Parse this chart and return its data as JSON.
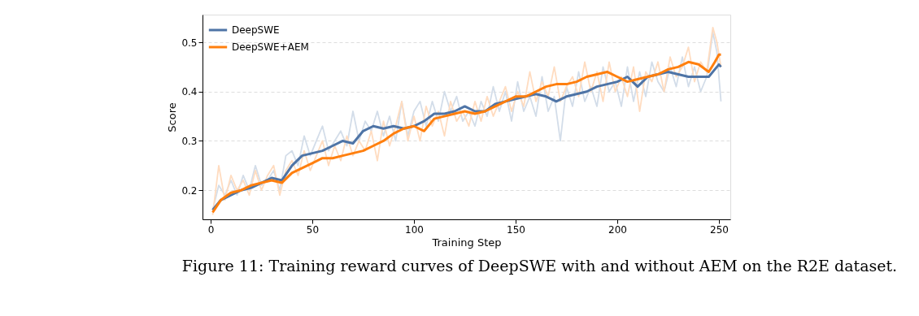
{
  "chart_data": {
    "type": "line",
    "xlabel": "Training Step",
    "ylabel": "Score",
    "xlim": [
      -4,
      255.6
    ],
    "ylim": [
      0.141,
      0.556
    ],
    "xticks": [
      0,
      50,
      100,
      150,
      200,
      250
    ],
    "yticks": [
      0.2,
      0.3,
      0.4,
      0.5
    ],
    "grid": "y",
    "legend": "top left",
    "line_style": "solid",
    "marker": "none",
    "annotations": [
      "Figure 11: Training reward curves of DeepSWE with and without AEM on the R2E dataset."
    ],
    "series": [
      {
        "color": "#d3dde9",
        "x": [
          1,
          4,
          7,
          10,
          13,
          16,
          19,
          22,
          25,
          28,
          31,
          34,
          37,
          40,
          43,
          46,
          49,
          52,
          55,
          58,
          61,
          64,
          67,
          70,
          73,
          76,
          79,
          82,
          85,
          88,
          91,
          94,
          97,
          100,
          103,
          106,
          109,
          112,
          115,
          118,
          121,
          124,
          127,
          130,
          133,
          136,
          139,
          142,
          145,
          148,
          151,
          154,
          157,
          160,
          163,
          166,
          169,
          172,
          175,
          178,
          181,
          184,
          187,
          190,
          193,
          196,
          199,
          202,
          205,
          208,
          211,
          214,
          217,
          220,
          223,
          226,
          229,
          232,
          235,
          238,
          241,
          244,
          247,
          249,
          251
        ],
        "values": [
          0.16,
          0.21,
          0.19,
          0.22,
          0.19,
          0.23,
          0.2,
          0.25,
          0.21,
          0.22,
          0.24,
          0.2,
          0.27,
          0.28,
          0.25,
          0.31,
          0.27,
          0.3,
          0.33,
          0.28,
          0.3,
          0.32,
          0.29,
          0.36,
          0.3,
          0.34,
          0.32,
          0.36,
          0.31,
          0.35,
          0.3,
          0.38,
          0.31,
          0.36,
          0.38,
          0.33,
          0.38,
          0.34,
          0.4,
          0.36,
          0.39,
          0.34,
          0.36,
          0.33,
          0.38,
          0.35,
          0.41,
          0.36,
          0.4,
          0.34,
          0.42,
          0.36,
          0.39,
          0.35,
          0.43,
          0.36,
          0.39,
          0.3,
          0.41,
          0.37,
          0.44,
          0.38,
          0.41,
          0.37,
          0.45,
          0.4,
          0.42,
          0.37,
          0.45,
          0.38,
          0.44,
          0.39,
          0.46,
          0.42,
          0.4,
          0.45,
          0.41,
          0.47,
          0.41,
          0.45,
          0.4,
          0.43,
          0.52,
          0.48,
          0.38
        ]
      },
      {
        "color": "#ffdcc0",
        "x": [
          1,
          4,
          7,
          10,
          13,
          16,
          19,
          22,
          25,
          28,
          31,
          34,
          37,
          40,
          43,
          46,
          49,
          52,
          55,
          58,
          61,
          64,
          67,
          70,
          73,
          76,
          79,
          82,
          85,
          88,
          91,
          94,
          97,
          100,
          103,
          106,
          109,
          112,
          115,
          118,
          121,
          124,
          127,
          130,
          133,
          136,
          139,
          142,
          145,
          148,
          151,
          154,
          157,
          160,
          163,
          166,
          169,
          172,
          175,
          178,
          181,
          184,
          187,
          190,
          193,
          196,
          199,
          202,
          205,
          208,
          211,
          214,
          217,
          220,
          223,
          226,
          229,
          232,
          235,
          238,
          241,
          244,
          247,
          249,
          251
        ],
        "values": [
          0.15,
          0.25,
          0.18,
          0.23,
          0.2,
          0.22,
          0.19,
          0.24,
          0.2,
          0.23,
          0.25,
          0.19,
          0.24,
          0.26,
          0.23,
          0.28,
          0.24,
          0.27,
          0.3,
          0.25,
          0.29,
          0.26,
          0.31,
          0.27,
          0.3,
          0.28,
          0.32,
          0.26,
          0.34,
          0.29,
          0.33,
          0.38,
          0.3,
          0.35,
          0.3,
          0.37,
          0.33,
          0.36,
          0.31,
          0.38,
          0.34,
          0.36,
          0.33,
          0.38,
          0.34,
          0.39,
          0.35,
          0.38,
          0.41,
          0.36,
          0.4,
          0.37,
          0.44,
          0.38,
          0.42,
          0.39,
          0.45,
          0.38,
          0.41,
          0.43,
          0.39,
          0.46,
          0.4,
          0.44,
          0.38,
          0.46,
          0.4,
          0.43,
          0.39,
          0.45,
          0.36,
          0.44,
          0.42,
          0.46,
          0.4,
          0.47,
          0.43,
          0.45,
          0.49,
          0.42,
          0.46,
          0.44,
          0.53,
          0.5,
          0.45
        ]
      },
      {
        "name": "DeepSWE",
        "color": "#4e74a6",
        "x": [
          1,
          5,
          10,
          15,
          20,
          25,
          30,
          35,
          40,
          45,
          50,
          55,
          60,
          65,
          70,
          75,
          80,
          85,
          90,
          95,
          100,
          105,
          110,
          115,
          120,
          125,
          130,
          135,
          140,
          145,
          150,
          155,
          160,
          165,
          170,
          175,
          180,
          185,
          190,
          195,
          200,
          205,
          210,
          215,
          220,
          225,
          230,
          235,
          240,
          245,
          248,
          250,
          251
        ],
        "values": [
          0.16,
          0.18,
          0.19,
          0.2,
          0.205,
          0.215,
          0.225,
          0.22,
          0.25,
          0.27,
          0.275,
          0.28,
          0.29,
          0.3,
          0.295,
          0.32,
          0.33,
          0.325,
          0.33,
          0.325,
          0.33,
          0.34,
          0.355,
          0.355,
          0.36,
          0.37,
          0.36,
          0.36,
          0.375,
          0.38,
          0.385,
          0.39,
          0.395,
          0.39,
          0.38,
          0.39,
          0.395,
          0.4,
          0.41,
          0.415,
          0.42,
          0.43,
          0.41,
          0.43,
          0.435,
          0.44,
          0.435,
          0.43,
          0.43,
          0.43,
          0.445,
          0.455,
          0.45
        ]
      },
      {
        "name": "DeepSWE+AEM",
        "color": "#ff7f0e",
        "x": [
          1,
          5,
          10,
          15,
          20,
          25,
          30,
          35,
          40,
          45,
          50,
          55,
          60,
          65,
          70,
          75,
          80,
          85,
          90,
          95,
          100,
          105,
          110,
          115,
          120,
          125,
          130,
          135,
          140,
          145,
          150,
          155,
          160,
          165,
          170,
          175,
          180,
          185,
          190,
          195,
          200,
          205,
          210,
          215,
          220,
          225,
          230,
          235,
          240,
          245,
          248,
          250,
          251
        ],
        "values": [
          0.155,
          0.18,
          0.195,
          0.2,
          0.21,
          0.215,
          0.22,
          0.215,
          0.235,
          0.245,
          0.255,
          0.265,
          0.265,
          0.27,
          0.275,
          0.28,
          0.29,
          0.3,
          0.315,
          0.325,
          0.33,
          0.32,
          0.345,
          0.35,
          0.355,
          0.36,
          0.355,
          0.36,
          0.37,
          0.38,
          0.39,
          0.39,
          0.4,
          0.41,
          0.415,
          0.415,
          0.42,
          0.43,
          0.435,
          0.44,
          0.43,
          0.42,
          0.425,
          0.43,
          0.435,
          0.445,
          0.45,
          0.46,
          0.455,
          0.44,
          0.46,
          0.475,
          0.475
        ]
      }
    ]
  }
}
